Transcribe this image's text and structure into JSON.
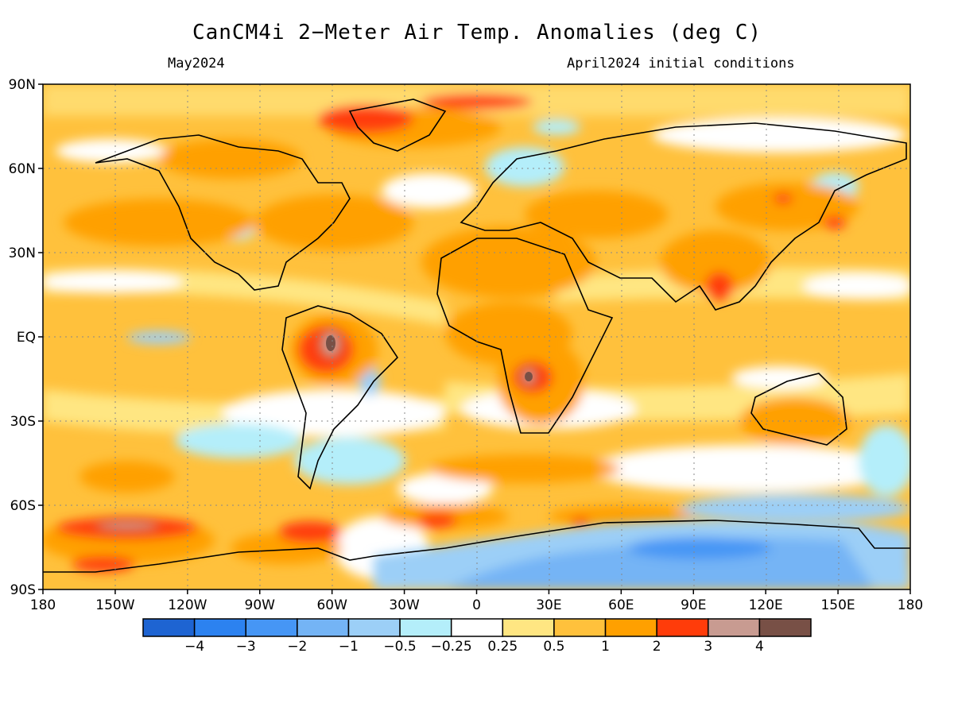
{
  "header": {
    "title": "CanCM4i 2−Meter Air Temp. Anomalies (deg C)",
    "valid_month": "May2024",
    "initial_conditions": "April2024 initial conditions"
  },
  "map": {
    "projection": "equirectangular",
    "lon_range": [
      -180,
      180
    ],
    "lat_range": [
      -90,
      90
    ],
    "lon_ticks": [
      "180",
      "150W",
      "120W",
      "90W",
      "60W",
      "30W",
      "0",
      "30E",
      "60E",
      "90E",
      "120E",
      "150E",
      "180"
    ],
    "lat_ticks": [
      "90N",
      "60N",
      "30N",
      "EQ",
      "30S",
      "60S",
      "90S"
    ],
    "gridlines": "dotted"
  },
  "colorbar": {
    "labels": [
      "−4",
      "−3",
      "−2",
      "−1",
      "−0.5",
      "−0.25",
      "0.25",
      "0.5",
      "1",
      "2",
      "3",
      "4"
    ],
    "colors": [
      "#1e64d2",
      "#2c82f0",
      "#4696f5",
      "#74b4f5",
      "#9ccff7",
      "#b4eefa",
      "#ffffff",
      "#ffe682",
      "#ffc13c",
      "#ffa000",
      "#ff3c0a",
      "#c89b91",
      "#785046"
    ]
  },
  "anomaly_regions": [
    {
      "area": "Greenland / Arctic",
      "level": "3"
    },
    {
      "area": "Central Amazon",
      "level": "4"
    },
    {
      "area": "Southern Africa (Zambia/Zimbabwe)",
      "level": "4"
    },
    {
      "area": "Southeast Asia",
      "level": "3"
    },
    {
      "area": "South Pacific near Antarctica",
      "level": "3 to 4"
    },
    {
      "area": "Antarctica interior",
      "level": "−1 to −2"
    },
    {
      "area": "Tropical oceans",
      "level": "0.5 to 2"
    }
  ]
}
